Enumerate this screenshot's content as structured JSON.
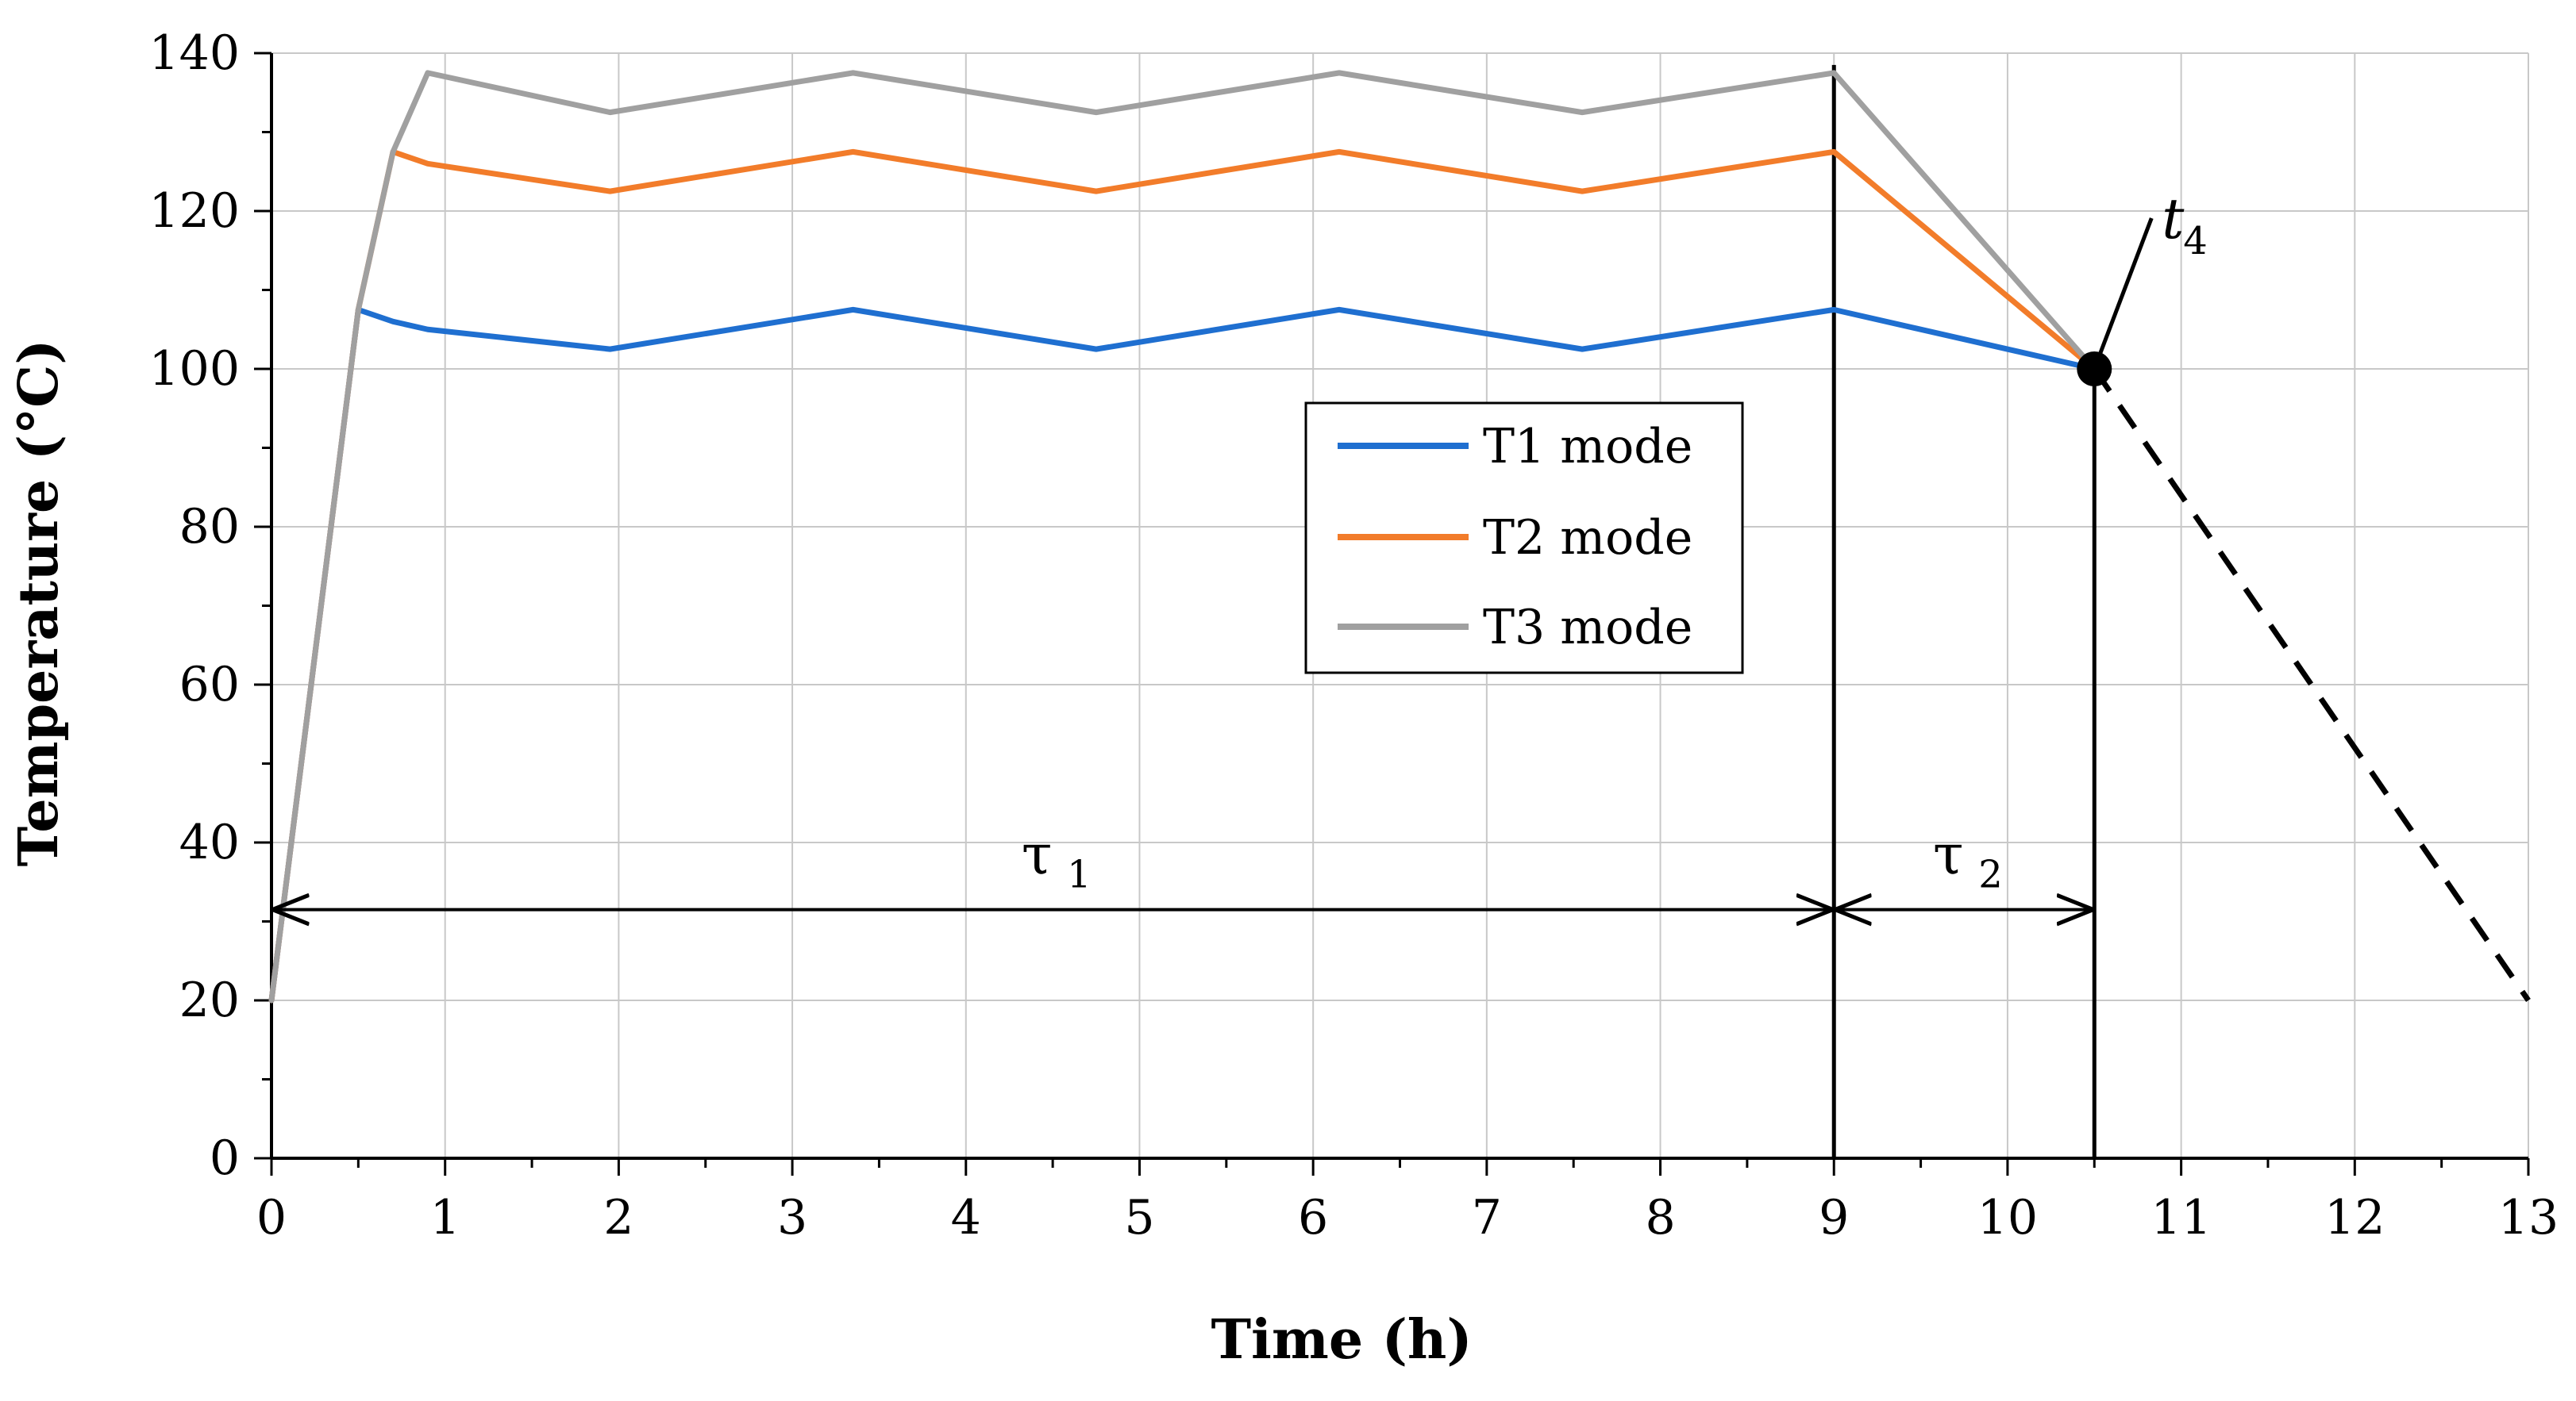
{
  "chart_data": {
    "type": "line",
    "title": "",
    "xlabel": "Time (h)",
    "ylabel": "Temperature (°C)",
    "xlim": [
      0,
      13
    ],
    "ylim": [
      0,
      140
    ],
    "xticks": [
      0,
      1,
      2,
      3,
      4,
      5,
      6,
      7,
      8,
      9,
      10,
      11,
      12,
      13
    ],
    "yticks": [
      0,
      20,
      40,
      60,
      80,
      100,
      120,
      140
    ],
    "grid": true,
    "legend_position": "center",
    "series": [
      {
        "name": "T1 mode",
        "color": "#1F6FD0",
        "x": [
          0,
          0.5,
          0.7,
          0.9,
          1.95,
          3.35,
          4.75,
          6.15,
          7.55,
          9.0,
          10.5
        ],
        "y": [
          20,
          107.5,
          106,
          105,
          102.5,
          107.5,
          102.5,
          107.5,
          102.5,
          107.5,
          100
        ]
      },
      {
        "name": "T2 mode",
        "color": "#F27C2A",
        "x": [
          0,
          0.5,
          0.7,
          0.9,
          1.95,
          3.35,
          4.75,
          6.15,
          7.55,
          9.0,
          10.5
        ],
        "y": [
          20,
          107.5,
          127.5,
          126,
          122.5,
          127.5,
          122.5,
          127.5,
          122.5,
          127.5,
          100
        ]
      },
      {
        "name": "T3 mode",
        "color": "#A0A0A0",
        "x": [
          0,
          0.5,
          0.7,
          0.9,
          1.95,
          3.35,
          4.75,
          6.15,
          7.55,
          9.0,
          10.5
        ],
        "y": [
          20,
          107.5,
          127.5,
          137.5,
          132.5,
          137.5,
          132.5,
          137.5,
          132.5,
          137.5,
          100
        ]
      }
    ],
    "cooling_extrapolation": {
      "style": "dashed",
      "color": "#000000",
      "x": [
        10.5,
        13
      ],
      "y": [
        100,
        20
      ]
    },
    "annotations": {
      "tau1": {
        "symbol": "τ",
        "subscript": "1",
        "x_start": 0,
        "x_end": 9,
        "y": 31.5
      },
      "tau2": {
        "symbol": "τ",
        "subscript": "2",
        "x_start": 9,
        "x_end": 10.5,
        "y": 31.5
      },
      "t4": {
        "symbol": "t",
        "subscript": "4",
        "point_x": 10.5,
        "point_y": 100
      },
      "vertical_lines": [
        9,
        10.5
      ]
    }
  }
}
